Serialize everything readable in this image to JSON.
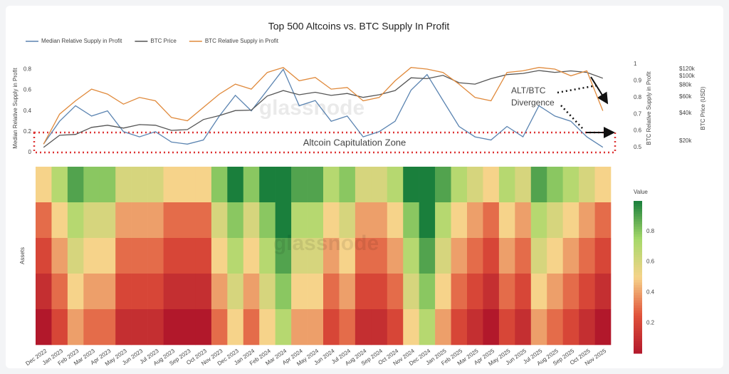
{
  "chart_data": [
    {
      "type": "line",
      "title": "Top 500 Altcoins vs. BTC Supply In Profit",
      "watermark": "glassnode",
      "ylabel": "Median Relative Supply in Profit",
      "y2label": "BTC Relative Supply in Profit",
      "y3label": "BTC Price (USD)",
      "ylim": [
        0,
        0.85
      ],
      "yticks": [
        0,
        0.2,
        0.4,
        0.6,
        0.8
      ],
      "y2lim": [
        0.47,
        1.0
      ],
      "y2ticks": [
        0.5,
        0.6,
        0.7,
        0.8,
        0.9,
        1
      ],
      "y3lim": [
        15000,
        135000
      ],
      "y3log": true,
      "y3ticks": [
        {
          "value": 20000,
          "label": "$20k"
        },
        {
          "value": 40000,
          "label": "$40k"
        },
        {
          "value": 60000,
          "label": "$60k"
        },
        {
          "value": 80000,
          "label": "$80k"
        },
        {
          "value": 100000,
          "label": "$100k"
        },
        {
          "value": 120000,
          "label": "$120k"
        }
      ],
      "annotations": [
        "Altcoin Capitulation Zone",
        "ALT/BTC Divergence"
      ],
      "series": [
        {
          "name": "Median Relative Supply in Profit",
          "color": "#5b84b1",
          "axis": "y",
          "values": [
            0.08,
            0.3,
            0.45,
            0.35,
            0.4,
            0.2,
            0.15,
            0.2,
            0.1,
            0.08,
            0.12,
            0.35,
            0.55,
            0.4,
            0.6,
            0.8,
            0.45,
            0.5,
            0.3,
            0.35,
            0.15,
            0.2,
            0.3,
            0.6,
            0.75,
            0.5,
            0.25,
            0.15,
            0.12,
            0.25,
            0.15,
            0.45,
            0.35,
            0.3,
            0.15,
            0.05
          ]
        },
        {
          "name": "BTC Price",
          "color": "#555555",
          "axis": "y3",
          "values": [
            17000,
            23000,
            23500,
            28000,
            29500,
            27500,
            30000,
            29500,
            26000,
            26500,
            34000,
            37500,
            42500,
            43000,
            61000,
            70000,
            63000,
            67000,
            62000,
            65000,
            59000,
            63000,
            70000,
            96000,
            94000,
            102000,
            85000,
            82000,
            94000,
            104000,
            107000,
            115000,
            110000,
            114000,
            110000,
            95000
          ]
        },
        {
          "name": "BTC Relative Supply in Profit",
          "color": "#e08a3c",
          "axis": "y2",
          "values": [
            0.52,
            0.7,
            0.78,
            0.85,
            0.82,
            0.76,
            0.8,
            0.78,
            0.68,
            0.66,
            0.74,
            0.82,
            0.88,
            0.85,
            0.95,
            0.98,
            0.9,
            0.92,
            0.85,
            0.86,
            0.78,
            0.8,
            0.9,
            0.98,
            0.97,
            0.95,
            0.88,
            0.8,
            0.78,
            0.95,
            0.96,
            0.98,
            0.97,
            0.93,
            0.96,
            0.72
          ]
        }
      ]
    },
    {
      "type": "heatmap",
      "ylabel": "Assets",
      "watermark": "glassnode",
      "colorbar_title": "Value",
      "zlim": [
        0,
        1
      ],
      "zticks": [
        0.2,
        0.4,
        0.6,
        0.8
      ],
      "colorscale": [
        "#b2182b",
        "#e0523a",
        "#f6d38a",
        "#a6d96a",
        "#1a7f3c"
      ],
      "x": [
        "Dec 2022",
        "Jan 2023",
        "Feb 2023",
        "Mar 2023",
        "Apr 2023",
        "May 2023",
        "Jun 2023",
        "Jul 2023",
        "Aug 2023",
        "Sep 2023",
        "Oct 2023",
        "Nov 2023",
        "Dec 2023",
        "Jan 2024",
        "Feb 2024",
        "Mar 2024",
        "Apr 2024",
        "May 2024",
        "Jun 2024",
        "Jul 2024",
        "Aug 2024",
        "Sep 2024",
        "Oct 2024",
        "Nov 2024",
        "Dec 2024",
        "Jan 2025",
        "Feb 2025",
        "Mar 2025",
        "Apr 2025",
        "May 2025",
        "Jun 2025",
        "Jul 2025",
        "Aug 2025",
        "Sep 2025",
        "Oct 2025",
        "Nov 2025"
      ],
      "z": [
        [
          0.5,
          0.7,
          0.9,
          0.8,
          0.8,
          0.6,
          0.6,
          0.6,
          0.5,
          0.5,
          0.5,
          0.8,
          1,
          0.8,
          1,
          1,
          0.9,
          0.9,
          0.7,
          0.8,
          0.6,
          0.6,
          0.7,
          1,
          1,
          0.9,
          0.7,
          0.6,
          0.5,
          0.7,
          0.6,
          0.9,
          0.8,
          0.7,
          0.6,
          0.5
        ],
        [
          0.3,
          0.5,
          0.7,
          0.6,
          0.6,
          0.4,
          0.4,
          0.4,
          0.3,
          0.3,
          0.3,
          0.6,
          0.8,
          0.6,
          0.8,
          1,
          0.7,
          0.7,
          0.5,
          0.6,
          0.4,
          0.4,
          0.5,
          0.8,
          1,
          0.7,
          0.5,
          0.4,
          0.3,
          0.5,
          0.4,
          0.7,
          0.6,
          0.5,
          0.4,
          0.3
        ],
        [
          0.2,
          0.4,
          0.6,
          0.5,
          0.5,
          0.3,
          0.3,
          0.3,
          0.2,
          0.2,
          0.2,
          0.5,
          0.7,
          0.5,
          0.7,
          0.9,
          0.6,
          0.6,
          0.4,
          0.5,
          0.3,
          0.3,
          0.4,
          0.7,
          0.9,
          0.6,
          0.4,
          0.3,
          0.2,
          0.4,
          0.3,
          0.6,
          0.5,
          0.4,
          0.3,
          0.2
        ],
        [
          0.1,
          0.3,
          0.5,
          0.4,
          0.4,
          0.2,
          0.2,
          0.2,
          0.1,
          0.1,
          0.1,
          0.4,
          0.6,
          0.4,
          0.6,
          0.8,
          0.5,
          0.5,
          0.3,
          0.4,
          0.2,
          0.2,
          0.3,
          0.6,
          0.8,
          0.5,
          0.3,
          0.2,
          0.1,
          0.3,
          0.2,
          0.5,
          0.4,
          0.3,
          0.2,
          0.1
        ],
        [
          0,
          0.2,
          0.4,
          0.3,
          0.3,
          0.1,
          0.1,
          0.1,
          0,
          0,
          0,
          0.3,
          0.5,
          0.3,
          0.5,
          0.7,
          0.4,
          0.4,
          0.2,
          0.3,
          0.1,
          0.1,
          0.2,
          0.5,
          0.7,
          0.4,
          0.2,
          0.1,
          0,
          0.2,
          0.1,
          0.4,
          0.3,
          0.2,
          0.1,
          0
        ]
      ]
    }
  ]
}
